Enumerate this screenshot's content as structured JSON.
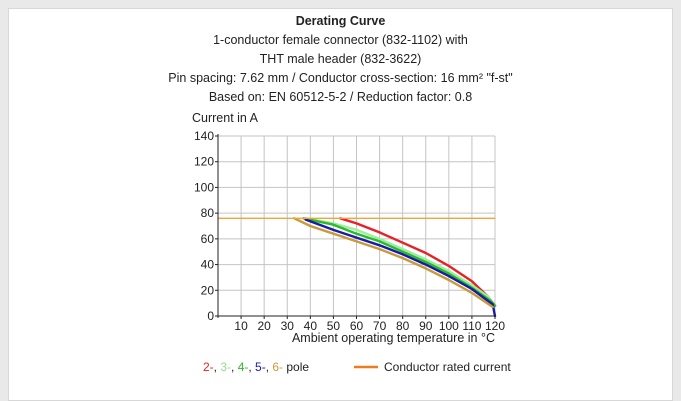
{
  "chart_data": {
    "type": "line",
    "title": "Derating Curve",
    "subtitle_lines": [
      "1-conductor female connector (832-1102) with",
      "THT male header (832-3622)",
      "Pin spacing: 7.62 mm / Conductor cross-section: 16 mm² \"f-st\"",
      "Based on: EN 60512-5-2 / Reduction factor: 0.8"
    ],
    "ylabel": "Current in A",
    "xlabel": "Ambient operating temperature in °C",
    "xlim": [
      0,
      120
    ],
    "ylim": [
      0,
      140
    ],
    "x_ticks": [
      10,
      20,
      30,
      40,
      50,
      60,
      70,
      80,
      90,
      100,
      110,
      120
    ],
    "y_ticks": [
      0,
      20,
      40,
      60,
      80,
      100,
      120,
      140
    ],
    "grid": true,
    "series": [
      {
        "name": "2-",
        "color": "#e8202a",
        "x": [
          53,
          60,
          70,
          80,
          90,
          100,
          110,
          117,
          120
        ],
        "y": [
          76,
          72,
          65,
          57,
          49,
          39,
          27,
          15,
          8
        ]
      },
      {
        "name": "3-",
        "color": "#9bf09b",
        "x": [
          38,
          50,
          60,
          70,
          80,
          90,
          100,
          110,
          117,
          120
        ],
        "y": [
          76,
          72,
          67,
          60,
          52,
          44,
          35,
          24,
          15,
          8
        ]
      },
      {
        "name": "4-",
        "color": "#2eb82e",
        "x": [
          37,
          50,
          60,
          70,
          80,
          90,
          100,
          110,
          118,
          120
        ],
        "y": [
          76,
          71,
          64,
          58,
          50,
          42,
          33,
          22,
          12,
          8
        ]
      },
      {
        "name": "5-",
        "color": "#1a1aa8",
        "x": [
          38,
          50,
          60,
          70,
          80,
          90,
          100,
          110,
          119,
          120
        ],
        "y": [
          75,
          67,
          61,
          55,
          48,
          40,
          31,
          21,
          9,
          0
        ]
      },
      {
        "name": "6-",
        "color": "#c99a3a",
        "x": [
          33,
          40,
          50,
          60,
          70,
          80,
          90,
          100,
          110,
          119
        ],
        "y": [
          76,
          70,
          64,
          58,
          52,
          45,
          37,
          28,
          18,
          7
        ]
      },
      {
        "name": "Conductor rated current",
        "color": "#f2a33a",
        "x": [
          0,
          120
        ],
        "y": [
          76,
          76
        ]
      }
    ],
    "legend": {
      "placement": "bottom",
      "pole_items": [
        {
          "text": "2-",
          "color": "#e8202a"
        },
        {
          "text": ", ",
          "color": "#222222"
        },
        {
          "text": "3-",
          "color": "#8fe08f"
        },
        {
          "text": ", ",
          "color": "#222222"
        },
        {
          "text": "4-",
          "color": "#2eb82e"
        },
        {
          "text": ", ",
          "color": "#222222"
        },
        {
          "text": "5-",
          "color": "#1a1aa8"
        },
        {
          "text": ", ",
          "color": "#222222"
        },
        {
          "text": "6-",
          "color": "#c99a3a"
        },
        {
          "text": "  pole",
          "color": "#222222"
        }
      ],
      "rated_label": "Conductor rated current",
      "rated_color": "#f07a1e"
    }
  }
}
